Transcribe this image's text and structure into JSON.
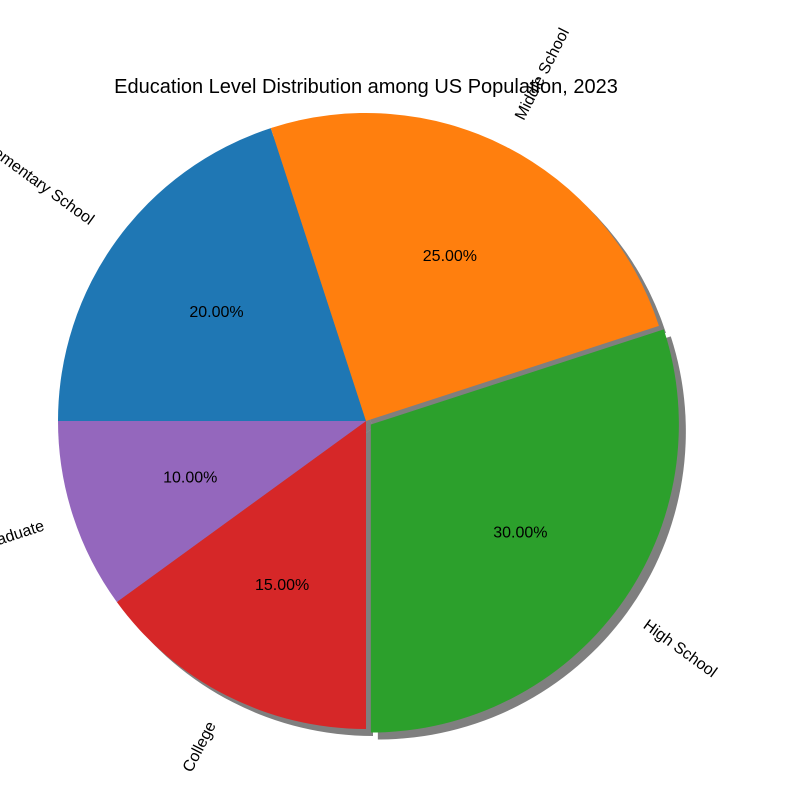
{
  "chart_data": {
    "type": "pie",
    "title": "Education Level Distribution among US Population, 2023",
    "categories": [
      "Elementary School",
      "Middle School",
      "High School",
      "College",
      "Postgraduate"
    ],
    "values": [
      20,
      25,
      30,
      15,
      10
    ],
    "value_labels": [
      "20.00%",
      "25.00%",
      "30.00%",
      "15.00%",
      "10.00%"
    ],
    "colors": [
      "#1f77b4",
      "#ff7f0e",
      "#2ca02c",
      "#d62728",
      "#9467bd"
    ],
    "exploded": "High School",
    "shadow": true,
    "start_angle_deg": 180,
    "direction": "clockwise"
  }
}
